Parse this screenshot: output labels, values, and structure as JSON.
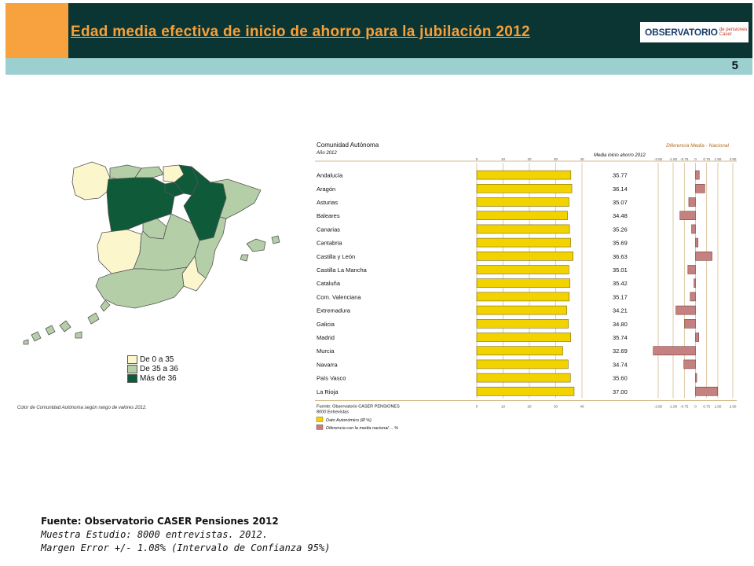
{
  "header": {
    "title": "Edad media efectiva de inicio de ahorro para la jubilación 2012",
    "logo_main": "OBSERVATORIO",
    "logo_sub_1": "de pensiones",
    "logo_sub_2": "Caser",
    "page_number": "5"
  },
  "colors": {
    "orange": "#f7a23e",
    "dark_teal": "#0b3533",
    "light_teal": "#9ccfd0",
    "bar_yellow": "#f2d300",
    "bar_mauve": "#c58080",
    "map_light": "#fbf6cc",
    "map_mid": "#b4cfa7",
    "map_dark": "#0e5a39"
  },
  "map": {
    "legend": [
      {
        "label": "De 0 a 35",
        "color": "#fbf6cc"
      },
      {
        "label": "De 35 a 36",
        "color": "#b4cfa7"
      },
      {
        "label": "Más de 36",
        "color": "#0e5a39"
      }
    ],
    "note": "Color de Comunidad Autónoma según rango de valores 2012."
  },
  "chart_data": {
    "type": "bar",
    "title": "Comunidad Autónoma",
    "subtitle": "Año 2012",
    "column_label_values": "Media inicio ahorro 2012",
    "column_label_diff": "Diferencia Media - Nacional",
    "categories": [
      "Andalucía",
      "Aragón",
      "Asturias",
      "Baleares",
      "Canarias",
      "Cantabria",
      "Castilla y León",
      "Castilla La Mancha",
      "Cataluña",
      "Com. Valenciana",
      "Extremadura",
      "Galicia",
      "Madrid",
      "Murcia",
      "Navarra",
      "País Vasco",
      "La Rioja"
    ],
    "series": [
      {
        "name": "Dato Autonómico (Ø %)",
        "values": [
          35.77,
          36.14,
          35.07,
          34.48,
          35.26,
          35.69,
          36.63,
          35.01,
          35.42,
          35.17,
          34.21,
          34.8,
          35.74,
          32.69,
          34.74,
          35.6,
          37.0
        ]
      },
      {
        "name": "Diferencia con la media nacional ... %",
        "values": [
          0.25,
          0.62,
          -0.45,
          -1.04,
          -0.26,
          0.17,
          1.11,
          -0.51,
          -0.1,
          -0.35,
          -1.31,
          -0.72,
          0.22,
          -2.83,
          -0.78,
          0.08,
          1.48
        ]
      }
    ],
    "value_labels": [
      "35.77",
      "36.14",
      "35.07",
      "34.48",
      "35.26",
      "35.69",
      "36.63",
      "35.01",
      "35.42",
      "35.17",
      "34.21",
      "34.80",
      "35.74",
      "32.69",
      "34.74",
      "35.60",
      "37.00"
    ],
    "x_ticks_values": [
      "0",
      "10",
      "20",
      "30",
      "40"
    ],
    "xlim_values": [
      0,
      40
    ],
    "x_ticks_diff": [
      "-2.50",
      "-1.50",
      "-0.75",
      "0",
      "0.75",
      "1.50",
      "2.50"
    ],
    "xlim_diff": [
      -2.5,
      2.5
    ],
    "source_1": "Fuente: Observatorio CASER PENSIONES",
    "source_2": "8000 Entrevistas",
    "legend_1": "Dato Autonómico (Ø %)",
    "legend_2": "Diferencia con la media nacional ... %"
  },
  "source": {
    "title": "Fuente: Observatorio CASER Pensiones 2012",
    "line1": "Muestra Estudio: 8000 entrevistas. 2012.",
    "line2": "Margen Error +/- 1.08% (Intervalo de Confianza 95%)"
  }
}
